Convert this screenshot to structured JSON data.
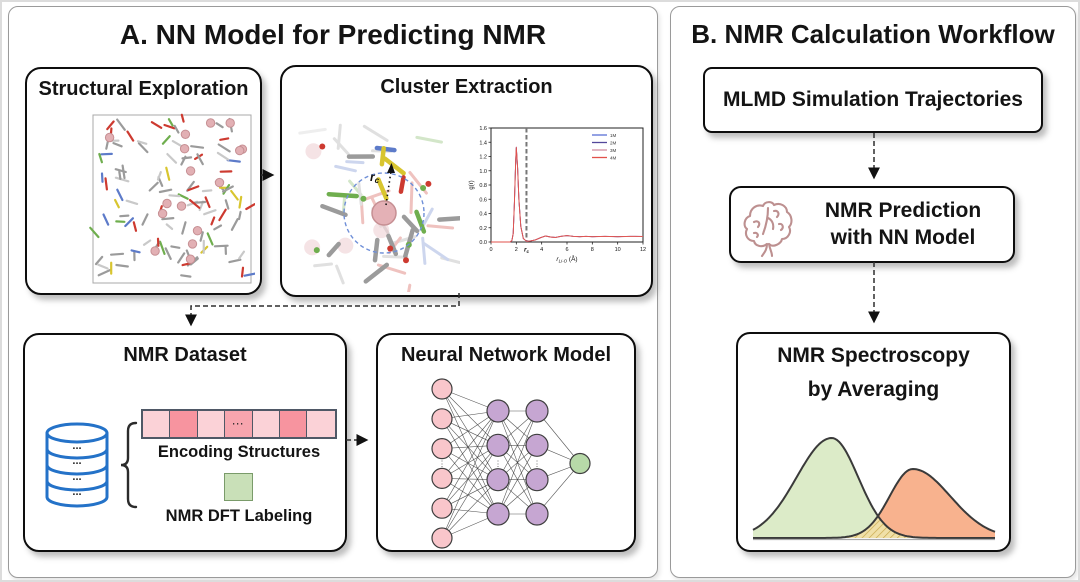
{
  "panel_a": {
    "title": "A. NN Model for Predicting NMR",
    "boxes": {
      "structural_exploration": {
        "title": "Structural Exploration"
      },
      "cluster_extraction": {
        "title": "Cluster Extraction",
        "cutoff_annotation": {
          "main": "r",
          "sub": "c"
        }
      },
      "nmr_dataset": {
        "title": "NMR Dataset",
        "database_rows": [
          "...",
          "...",
          "...",
          "..."
        ],
        "vector_cells": [
          {
            "fill": "#fbd2d7",
            "label": ""
          },
          {
            "fill": "#f7949f",
            "label": ""
          },
          {
            "fill": "#fbd2d7",
            "label": ""
          },
          {
            "fill": "#f7a5ae",
            "label": "···"
          },
          {
            "fill": "#fbd2d7",
            "label": ""
          },
          {
            "fill": "#f7949f",
            "label": ""
          },
          {
            "fill": "#fbd2d7",
            "label": ""
          }
        ],
        "encoding_label": "Encoding Structures",
        "labeling_label": "NMR DFT Labeling",
        "labeling_swatch_color": "#c9e0b8"
      },
      "nn_model": {
        "title": "Neural Network Model",
        "layers": [
          6,
          4,
          4,
          1
        ],
        "layer_colors": [
          "#f9c6cb",
          "#c6a6d2",
          "#c6a6d2",
          "#b7d9a8"
        ],
        "ellipsis": "⋮"
      }
    }
  },
  "panel_b": {
    "title": "B. NMR Calculation Workflow",
    "steps": [
      {
        "label": "MLMD Simulation Trajectories"
      },
      {
        "line1": "NMR Prediction",
        "line2": "with NN Model",
        "icon": "brain-icon"
      },
      {
        "line1": "NMR Spectroscopy",
        "line2": "by Averaging"
      }
    ]
  },
  "chart_data": [
    {
      "type": "line",
      "title": "",
      "xlabel": "r Li-O (Å)",
      "xlabel_parts": {
        "main": "r",
        "sub": "Li-O",
        "unit": " (Å)"
      },
      "ylabel": "g(r)",
      "xlim": [
        0,
        12
      ],
      "ylim": [
        0,
        1.6
      ],
      "xticks": [
        "0",
        "2",
        "4",
        "6",
        "8",
        "10",
        "12"
      ],
      "yticks": [
        "0.0",
        "0.2",
        "0.4",
        "0.6",
        "0.8",
        "1.0",
        "1.2",
        "1.4",
        "1.6"
      ],
      "grid": false,
      "legend_position": "upper right",
      "cutoff": {
        "x": 2.8,
        "label_main": "r",
        "label_sub": "c"
      },
      "x": [
        0,
        1.5,
        1.65,
        1.75,
        1.85,
        1.95,
        2.0,
        2.1,
        2.2,
        2.35,
        2.55,
        2.8,
        3.1,
        3.5,
        3.9,
        4.3,
        4.7,
        5.1,
        5.5,
        6.0,
        6.5,
        7.0,
        7.5,
        8.0,
        9.0,
        10.0,
        11.0,
        12.0
      ],
      "base_y": [
        0,
        0,
        0.02,
        0.12,
        0.55,
        1.15,
        1.33,
        1.05,
        0.6,
        0.22,
        0.05,
        0.01,
        0.015,
        0.03,
        0.06,
        0.085,
        0.07,
        0.065,
        0.08,
        0.09,
        0.08,
        0.075,
        0.08,
        0.075,
        0.08,
        0.075,
        0.08,
        0.078
      ],
      "series": [
        {
          "name": "1M",
          "color": "#5a6fd6",
          "scale": 1.0
        },
        {
          "name": "2M",
          "color": "#53479b",
          "scale": 0.99
        },
        {
          "name": "3M",
          "color": "#d18fa2",
          "scale": 0.98
        },
        {
          "name": "4M",
          "color": "#e2514b",
          "scale": 1.0
        }
      ]
    },
    {
      "type": "area",
      "title": "",
      "description": "Averaged NMR spectrum, two overlapping peaks",
      "x_range": [
        0,
        1
      ],
      "peaks": [
        {
          "name": "left-peak",
          "fill": "#dcebc8",
          "center": 0.325,
          "height": 1.0,
          "sigma_left": 0.145,
          "sigma_right": 0.11
        },
        {
          "name": "right-peak",
          "fill": "#f8b28e",
          "center": 0.66,
          "height": 0.69,
          "sigma_left": 0.095,
          "sigma_right": 0.155
        }
      ],
      "overlap": {
        "fill": "#f0e0a8",
        "hatch": "#c9a94e"
      },
      "outline_color": "#3a3a3a",
      "baseline_color": "#aaaaaa",
      "axes": "none"
    }
  ]
}
